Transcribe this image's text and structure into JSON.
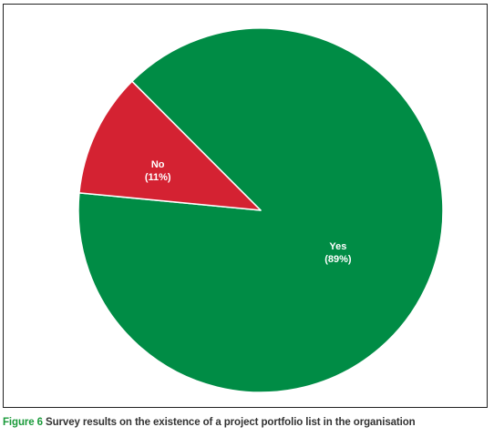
{
  "caption": {
    "figure_label": "Figure 6",
    "text": "Survey results on the existence of a project portfolio list in the organisation",
    "label_color": "#1a9a3a"
  },
  "chart_data": {
    "type": "pie",
    "title": "",
    "slices": [
      {
        "name": "Yes",
        "percent_label": "(89%)",
        "value": 89,
        "color": "#008c45"
      },
      {
        "name": "No",
        "percent_label": "(11%)",
        "value": 11,
        "color": "#d42232"
      }
    ],
    "edge_color": "#ffffff"
  }
}
